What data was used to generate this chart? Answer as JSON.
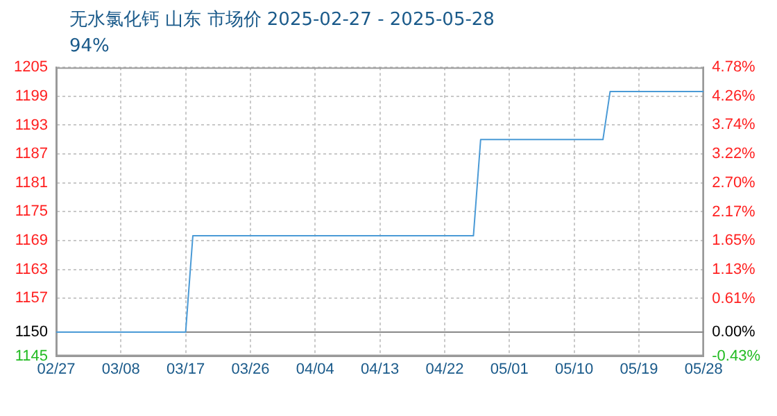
{
  "chart_data": {
    "type": "line",
    "title": "无水氯化钙 山东 市场价 2025-02-27 - 2025-05-28",
    "subtitle": "94%",
    "x": [
      "2025-02-27",
      "2025-03-17",
      "2025-03-18",
      "2025-04-26",
      "2025-04-27",
      "2025-05-14",
      "2025-05-15",
      "2025-05-28"
    ],
    "series": [
      {
        "color": "#4a9ad6",
        "values": [
          1150,
          1150,
          1170,
          1170,
          1190,
          1190,
          1200,
          1200
        ]
      }
    ],
    "xlim": [
      "2025-02-27",
      "2025-05-28"
    ],
    "xticks": [
      {
        "value": "2025-02-27",
        "label": "02/27"
      },
      {
        "value": "2025-03-08",
        "label": "03/08"
      },
      {
        "value": "2025-03-17",
        "label": "03/17"
      },
      {
        "value": "2025-03-26",
        "label": "03/26"
      },
      {
        "value": "2025-04-04",
        "label": "04/04"
      },
      {
        "value": "2025-04-13",
        "label": "04/13"
      },
      {
        "value": "2025-04-22",
        "label": "04/22"
      },
      {
        "value": "2025-05-01",
        "label": "05/01"
      },
      {
        "value": "2025-05-10",
        "label": "05/10"
      },
      {
        "value": "2025-05-19",
        "label": "05/19"
      },
      {
        "value": "2025-05-28",
        "label": "05/28"
      }
    ],
    "ylim": [
      1145,
      1205
    ],
    "yticks": [
      1145,
      1150,
      1157,
      1163,
      1169,
      1175,
      1181,
      1187,
      1193,
      1199,
      1205
    ],
    "y2lim": [
      -0.43,
      4.78
    ],
    "y2ticks": [
      {
        "value": -0.43,
        "label": "-0.43%"
      },
      {
        "value": 0,
        "label": "0.00%"
      },
      {
        "value": 0.61,
        "label": "0.61%"
      },
      {
        "value": 1.13,
        "label": "1.13%"
      },
      {
        "value": 1.65,
        "label": "1.65%"
      },
      {
        "value": 2.17,
        "label": "2.17%"
      },
      {
        "value": 2.7,
        "label": "2.70%"
      },
      {
        "value": 3.22,
        "label": "3.22%"
      },
      {
        "value": 3.74,
        "label": "3.74%"
      },
      {
        "value": 4.26,
        "label": "4.26%"
      },
      {
        "value": 4.78,
        "label": "4.78%"
      }
    ],
    "ref_lines": [
      {
        "axis": "y",
        "value": 1150,
        "color": "#888888"
      }
    ],
    "grid": true,
    "legend": false,
    "marker": "none",
    "line_style": "solid"
  }
}
